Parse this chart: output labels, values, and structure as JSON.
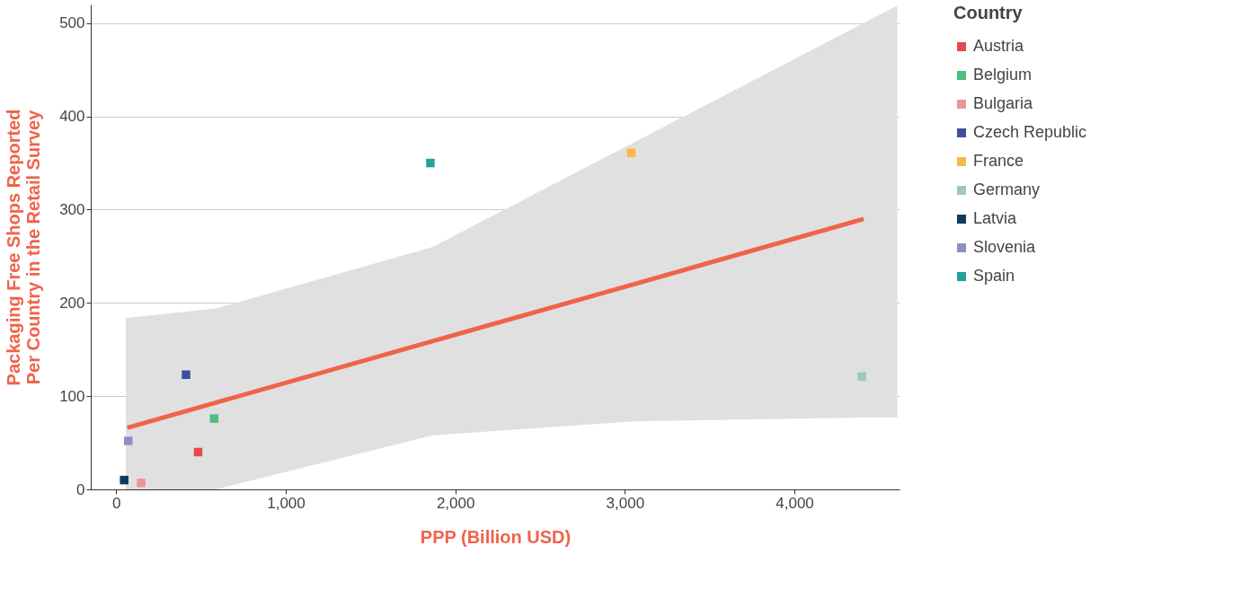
{
  "chart_data": {
    "type": "scatter",
    "xlabel": "PPP (Billion USD)",
    "ylabel": "Packaging Free Shops Reported\nPer Country in the Retail Survey",
    "legend_title": "Country",
    "xlim": [
      -150,
      4620
    ],
    "ylim": [
      0,
      520
    ],
    "xticks": [
      {
        "value": 0,
        "label": "0"
      },
      {
        "value": 1000,
        "label": "1,000"
      },
      {
        "value": 2000,
        "label": "2,000"
      },
      {
        "value": 3000,
        "label": "3,000"
      },
      {
        "value": 4000,
        "label": "4,000"
      }
    ],
    "yticks": [
      0,
      100,
      200,
      300,
      400,
      500
    ],
    "grid": "y",
    "legend": "right",
    "marker": "square",
    "series": [
      {
        "type": "line",
        "color": "#f0634a",
        "marker": "none",
        "x": [
          57,
          66,
          588,
          1867,
          3052,
          4408,
          4607
        ],
        "values": [
          null,
          66,
          93,
          159,
          220,
          290,
          null
        ],
        "lower": [
          0,
          0,
          0,
          58,
          73,
          77,
          77
        ],
        "upper": [
          184,
          184,
          194,
          260,
          372,
          500,
          519
        ]
      },
      {
        "name": "Austria",
        "color": "#e8474b",
        "x": [
          483
        ],
        "values": [
          40
        ]
      },
      {
        "name": "Belgium",
        "color": "#4dbf7f",
        "x": [
          578
        ],
        "values": [
          76
        ]
      },
      {
        "name": "Bulgaria",
        "color": "#e8969a",
        "x": [
          147
        ],
        "values": [
          7
        ]
      },
      {
        "name": "Czech Republic",
        "color": "#3f4f9e",
        "x": [
          412
        ],
        "values": [
          123
        ]
      },
      {
        "name": "France",
        "color": "#f9b944",
        "x": [
          3038
        ],
        "values": [
          361
        ]
      },
      {
        "name": "Germany",
        "color": "#9ec9b0",
        "x": [
          4398
        ],
        "values": [
          121
        ]
      },
      {
        "name": "Latvia",
        "color": "#0f3a5f",
        "x": [
          47
        ],
        "values": [
          10
        ]
      },
      {
        "name": "Slovenia",
        "color": "#8c8fc6",
        "x": [
          71
        ],
        "values": [
          52
        ]
      },
      {
        "name": "Spain",
        "color": "#23a19b",
        "x": [
          1853
        ],
        "values": [
          350
        ]
      }
    ]
  }
}
